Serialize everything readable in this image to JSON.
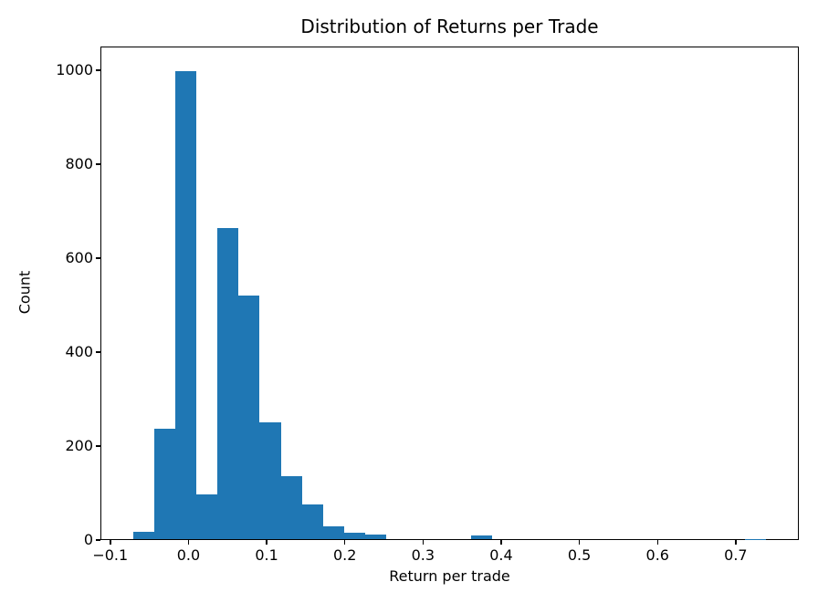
{
  "chart_data": {
    "type": "histogram",
    "title": "Distribution of Returns per Trade",
    "xlabel": "Return per trade",
    "ylabel": "Count",
    "bar_color": "#1f77b4",
    "background_color": "#ffffff",
    "axis_color": "#000000",
    "grid": false,
    "legend_position": "none",
    "xlim": [
      -0.1126,
      0.7807
    ],
    "ylim": [
      0,
      1050
    ],
    "xticks": {
      "values": [
        -0.1,
        0.0,
        0.1,
        0.2,
        0.3,
        0.4,
        0.5,
        0.6,
        0.7
      ],
      "labels": [
        "−0.1",
        "0.0",
        "0.1",
        "0.2",
        "0.3",
        "0.4",
        "0.5",
        "0.6",
        "0.7"
      ]
    },
    "yticks": {
      "values": [
        0,
        200,
        400,
        600,
        800,
        1000
      ],
      "labels": [
        "0",
        "200",
        "400",
        "600",
        "800",
        "1000"
      ]
    },
    "bin_edges": [
      -0.072,
      -0.0449,
      -0.0179,
      0.0092,
      0.0363,
      0.0633,
      0.0904,
      0.1175,
      0.1446,
      0.1716,
      0.1987,
      0.2258,
      0.2528,
      0.2799,
      0.307,
      0.3341,
      0.3611,
      0.3882,
      0.4153,
      0.4423,
      0.4694,
      0.4965,
      0.5235,
      0.5506,
      0.5777,
      0.6048,
      0.6318,
      0.6589,
      0.686,
      0.713,
      0.7401
    ],
    "counts": [
      15,
      235,
      1000,
      95,
      665,
      520,
      250,
      135,
      75,
      28,
      14,
      10,
      0,
      0,
      0,
      0,
      7,
      0,
      0,
      0,
      0,
      0,
      0,
      0,
      0,
      0,
      0,
      0,
      0,
      1
    ]
  }
}
